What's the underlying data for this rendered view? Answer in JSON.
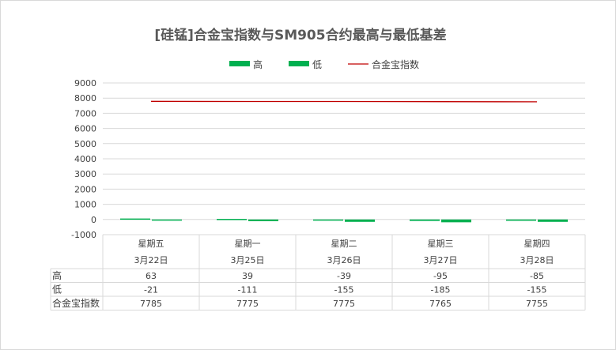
{
  "chart_data": {
    "type": "bar",
    "title": "[硅锰]合金宝指数与SM905合约最高与最低基差",
    "categories": [
      {
        "weekday": "星期五",
        "date": "3月22日"
      },
      {
        "weekday": "星期一",
        "date": "3月25日"
      },
      {
        "weekday": "星期二",
        "date": "3月26日"
      },
      {
        "weekday": "星期三",
        "date": "3月27日"
      },
      {
        "weekday": "星期四",
        "date": "3月28日"
      }
    ],
    "series": [
      {
        "name": "高",
        "kind": "bar",
        "color": "#00b050",
        "values": [
          63,
          39,
          -39,
          -95,
          -85
        ]
      },
      {
        "name": "低",
        "kind": "bar",
        "color": "#00b050",
        "values": [
          -21,
          -111,
          -155,
          -185,
          -155
        ]
      },
      {
        "name": "合金宝指数",
        "kind": "line",
        "color": "#c00000",
        "values": [
          7785,
          7775,
          7775,
          7765,
          7755
        ]
      }
    ],
    "ylim": [
      -1000,
      9000
    ],
    "yticks": [
      9000,
      8000,
      7000,
      6000,
      5000,
      4000,
      3000,
      2000,
      1000,
      0,
      -1000
    ],
    "grid": true,
    "legend_position": "top",
    "data_table": true
  }
}
